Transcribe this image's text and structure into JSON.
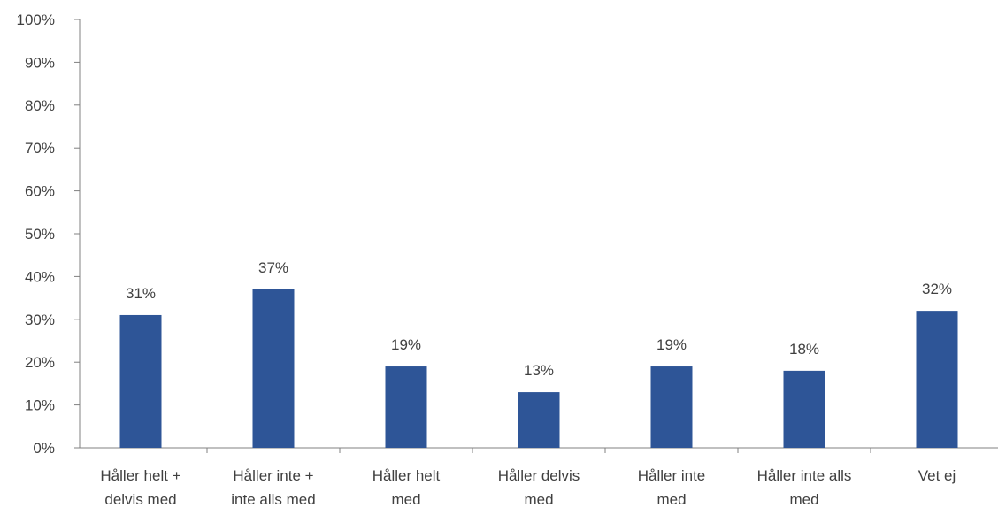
{
  "chart_data": {
    "type": "bar",
    "title": "",
    "xlabel": "",
    "ylabel": "",
    "categories": [
      [
        "Håller helt +",
        "delvis med"
      ],
      [
        "Håller inte +",
        "inte alls med"
      ],
      [
        "Håller helt",
        "med"
      ],
      [
        "Håller delvis",
        "med"
      ],
      [
        "Håller inte",
        "med"
      ],
      [
        "Håller inte alls",
        "med"
      ],
      [
        "Vet ej"
      ]
    ],
    "values": [
      31,
      37,
      19,
      13,
      19,
      18,
      32
    ],
    "data_labels": [
      "31%",
      "37%",
      "19%",
      "13%",
      "19%",
      "18%",
      "32%"
    ],
    "ylim": [
      0,
      100
    ],
    "yticks": [
      0,
      10,
      20,
      30,
      40,
      50,
      60,
      70,
      80,
      90,
      100
    ],
    "ytick_labels": [
      "0%",
      "10%",
      "20%",
      "30%",
      "40%",
      "50%",
      "60%",
      "70%",
      "80%",
      "90%",
      "100%"
    ],
    "grid": false,
    "legend": "none",
    "colors": {
      "bar": "#2e5597",
      "axis": "#808080",
      "text": "#404040"
    }
  }
}
